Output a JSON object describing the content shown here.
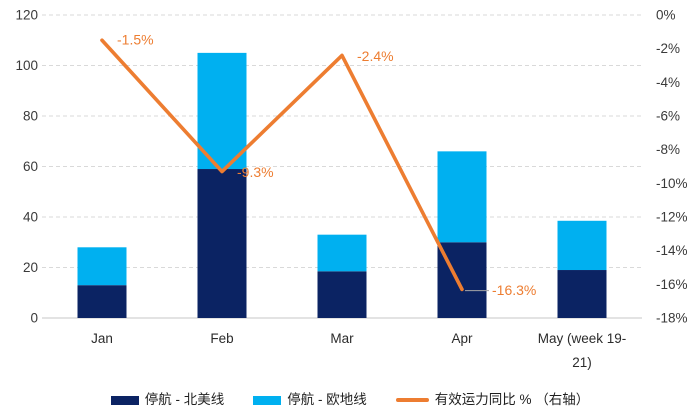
{
  "chart_data": {
    "type": "combo-stacked-bar-line",
    "title": "",
    "categories": [
      "Jan",
      "Feb",
      "Mar",
      "Apr",
      "May (week 19-21)"
    ],
    "category_tick_lines": [
      [
        "Jan"
      ],
      [
        "Feb"
      ],
      [
        "Mar"
      ],
      [
        "Apr"
      ],
      [
        "May (week 19-",
        "21)"
      ]
    ],
    "bar_series": [
      {
        "name": "停航 - 北美线",
        "color": "#0b2363",
        "values": [
          13,
          59,
          18.5,
          30,
          19
        ]
      },
      {
        "name": "停航 - 欧地线",
        "color": "#00b0f0",
        "values": [
          15,
          46,
          14.5,
          36,
          19.5
        ]
      }
    ],
    "line_series": {
      "name": "有效运力同比 % （右轴）",
      "color": "#ed7d31",
      "axis": "right",
      "values": [
        -1.5,
        -9.3,
        -2.4,
        -16.3,
        null
      ],
      "point_labels": [
        "-1.5%",
        "-9.3%",
        "-2.4%",
        "-16.3%",
        ""
      ]
    },
    "axis_left": {
      "min": 0,
      "max": 120,
      "tick_step": 20,
      "ticks": [
        "120",
        "100",
        "80",
        "60",
        "40",
        "20",
        "0"
      ]
    },
    "axis_right": {
      "min": -18,
      "max": 0,
      "tick_step": 2,
      "ticks": [
        "0%",
        "-2%",
        "-4%",
        "-6%",
        "-8%",
        "-10%",
        "-12%",
        "-14%",
        "-16%",
        "-18%"
      ]
    },
    "grid": "horizontal-dashed",
    "legend_position": "bottom",
    "colors": {
      "bar_north_america": "#0b2363",
      "bar_europe_med": "#00b0f0",
      "line_capacity_yoy": "#ed7d31",
      "gridline": "#d9d9d9",
      "axis_text": "#3a3a3a",
      "label_leader": "#a6a6a6"
    }
  }
}
